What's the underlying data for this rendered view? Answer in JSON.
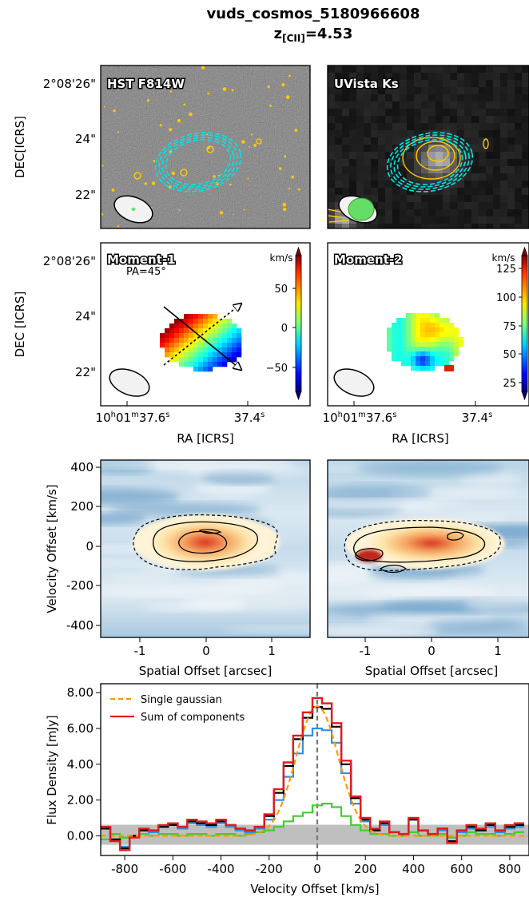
{
  "title": {
    "line1": "vuds_cosmos_5180966608",
    "line2_main": "z",
    "line2_sub": "[CII]",
    "line2_rest": "=4.53"
  },
  "colors": {
    "cyan_contour": "#00e5e5",
    "yellow_contour": "#ffc800",
    "green_beam": "#66dd66",
    "single_gaussian": "#ff9900",
    "sum_components": "#e41a1c",
    "blue_component": "#2f8fe8",
    "green_component": "#44cc33",
    "data_black": "#000000",
    "noise_band": "#bfbfbf"
  },
  "panels": {
    "hst": {
      "label": "HST F814W"
    },
    "uvista": {
      "label": "UVista Ks"
    },
    "mom1": {
      "label": "Moment-1",
      "pa_label": "PA=45°",
      "cbar_unit": "km/s",
      "cbar_ticks": [
        "50",
        "0",
        "−50"
      ]
    },
    "mom2": {
      "label": "Moment-2",
      "cbar_unit": "km/s",
      "cbar_ticks": [
        "125",
        "100",
        "75",
        "50",
        "25"
      ]
    }
  },
  "dec_axis": {
    "label_top": "DEC[ICRS]",
    "label_mid": "DEC [ICRS]",
    "ticks": [
      "2°08'26\"",
      "24\"",
      "22\""
    ]
  },
  "ra_axis": {
    "label": "RA [ICRS]",
    "tick_left_main": "10",
    "tick_left_h": "h",
    "tick_left_mid": "01",
    "tick_left_m": "m",
    "tick_left_end": "37.6",
    "tick_left_s": "s",
    "tick_right_main": "37.4",
    "tick_right_s": "s"
  },
  "pv_axis": {
    "ylabel": "Velocity Offset [km/s]",
    "xlabel": "Spatial Offset [arcsec]",
    "yticks": [
      "400",
      "200",
      "0",
      "-200",
      "-400"
    ],
    "xticks": [
      "-1",
      "0",
      "1"
    ]
  },
  "chart_data": [
    {
      "type": "heatmap",
      "panel": "pv-diagram-major-axis",
      "xlabel": "Spatial Offset [arcsec]",
      "ylabel": "Velocity Offset [km/s]",
      "xlim": [
        -1.6,
        1.6
      ],
      "ylim": [
        -450,
        420
      ]
    },
    {
      "type": "heatmap",
      "panel": "pv-diagram-minor-axis",
      "xlabel": "Spatial Offset [arcsec]",
      "xlim": [
        -1.6,
        1.6
      ],
      "ylim": [
        -450,
        420
      ]
    },
    {
      "type": "line",
      "panel": "spectrum",
      "xlabel": "Velocity Offset [km/s]",
      "ylabel": "Flux Density [mJy]",
      "xlim": [
        -900,
        880
      ],
      "ylim": [
        -1.1,
        8.5
      ],
      "xticks": [
        "-800",
        "-600",
        "-400",
        "-200",
        "0",
        "200",
        "400",
        "600",
        "800"
      ],
      "yticks": [
        "8.00",
        "6.00",
        "4.00",
        "2.00",
        "0.00"
      ],
      "noise_band": [
        -0.5,
        0.62
      ],
      "legend": {
        "placement": "top-left",
        "entries": [
          "Single gaussian",
          "Sum of components"
        ]
      },
      "bin_width": 40,
      "bin_centers": [
        -880,
        -840,
        -800,
        -760,
        -720,
        -680,
        -640,
        -600,
        -560,
        -520,
        -480,
        -440,
        -400,
        -360,
        -320,
        -280,
        -240,
        -200,
        -160,
        -120,
        -80,
        -40,
        0,
        40,
        80,
        120,
        160,
        200,
        240,
        280,
        320,
        360,
        400,
        440,
        480,
        520,
        560,
        600,
        640,
        680,
        720,
        760,
        800,
        840
      ],
      "series": [
        {
          "name": "Sum of components",
          "style": "step",
          "color": "#e41a1c",
          "values": [
            0.5,
            -0.3,
            -0.8,
            -0.1,
            0.4,
            0.3,
            0.6,
            0.7,
            0.5,
            0.9,
            0.8,
            0.7,
            0.9,
            0.6,
            0.4,
            0.3,
            0.5,
            1.2,
            2.6,
            4.1,
            5.6,
            6.9,
            7.7,
            7.4,
            6.3,
            4.2,
            2.2,
            1.0,
            0.4,
            0.8,
            0.2,
            0.1,
            1.0,
            0.3,
            0.1,
            0.4,
            -0.4,
            0.3,
            0.6,
            0.4,
            0.7,
            0.3,
            0.6,
            0.7
          ]
        },
        {
          "style": "step",
          "color": "#000000",
          "values": [
            0.4,
            -0.2,
            -0.7,
            0.0,
            0.3,
            0.3,
            0.5,
            0.6,
            0.5,
            0.8,
            0.7,
            0.6,
            0.8,
            0.6,
            0.4,
            0.3,
            0.5,
            1.1,
            2.4,
            3.9,
            5.4,
            6.6,
            7.2,
            7.1,
            6.1,
            4.0,
            2.1,
            0.9,
            0.3,
            0.7,
            0.2,
            0.1,
            0.9,
            0.3,
            0.1,
            0.4,
            -0.3,
            0.3,
            0.5,
            0.3,
            0.6,
            0.3,
            0.5,
            0.6
          ]
        },
        {
          "style": "step",
          "color": "#2f8fe8",
          "values": [
            0.4,
            -0.2,
            -0.6,
            0.0,
            0.3,
            0.2,
            0.5,
            0.6,
            0.4,
            0.7,
            0.6,
            0.5,
            0.7,
            0.5,
            0.3,
            0.2,
            0.4,
            0.9,
            2.0,
            3.3,
            4.6,
            5.6,
            6.0,
            5.9,
            5.2,
            3.5,
            1.8,
            0.8,
            0.3,
            0.6,
            0.2,
            0.1,
            0.9,
            0.3,
            0.1,
            0.3,
            -0.3,
            0.2,
            0.4,
            0.3,
            0.5,
            0.2,
            0.4,
            0.5
          ]
        },
        {
          "style": "step",
          "color": "#44cc33",
          "values": [
            -0.2,
            0.1,
            -0.1,
            0.0,
            0.1,
            0.0,
            0.1,
            0.1,
            0.0,
            0.1,
            0.1,
            0.0,
            0.1,
            0.1,
            0.0,
            0.1,
            0.2,
            0.3,
            0.5,
            0.8,
            1.1,
            1.3,
            1.7,
            1.8,
            1.6,
            1.1,
            0.6,
            0.3,
            0.1,
            0.1,
            0.0,
            0.0,
            0.2,
            0.0,
            0.0,
            0.1,
            -0.1,
            0.0,
            0.2,
            0.1,
            0.1,
            0.0,
            0.1,
            0.2
          ]
        },
        {
          "name": "Single gaussian",
          "style": "dashed",
          "color": "#ff9900",
          "gaussian": {
            "amplitude": 7.25,
            "center": 0,
            "sigma": 88
          }
        }
      ]
    }
  ]
}
